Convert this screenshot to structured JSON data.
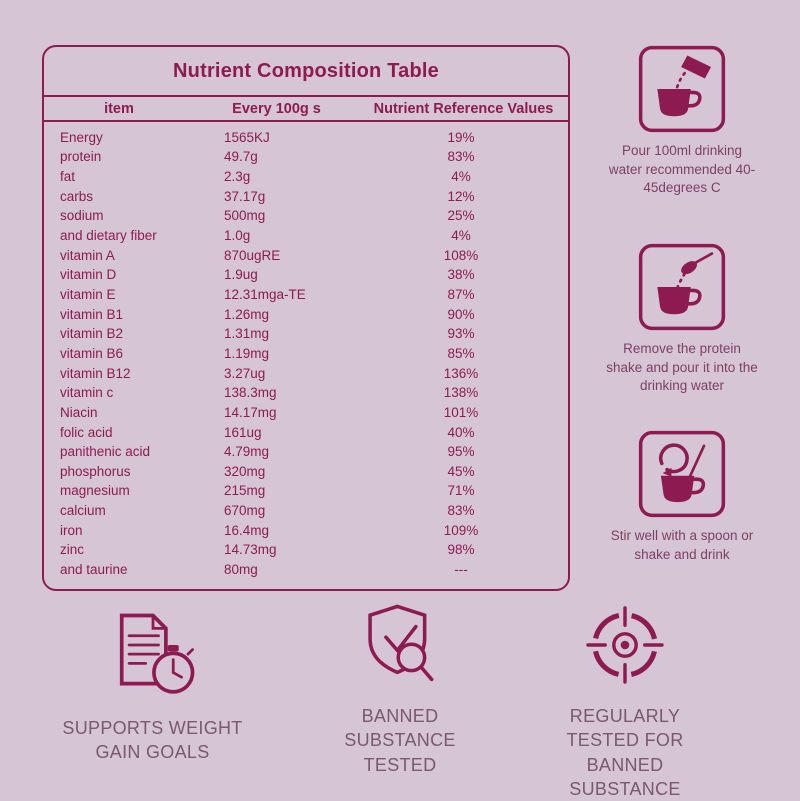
{
  "colors": {
    "background": "#d6c5d4",
    "accent": "#8d1b52",
    "muted_label": "#7a5871",
    "instruction_text": "#7d3f66"
  },
  "table": {
    "title": "Nutrient Composition Table",
    "headers": [
      "item",
      "Every 100g s",
      "Nutrient Reference Values"
    ],
    "rows": [
      [
        "Energy",
        "1565KJ",
        "19%"
      ],
      [
        "protein",
        "49.7g",
        "83%"
      ],
      [
        "fat",
        "2.3g",
        "4%"
      ],
      [
        "carbs",
        "37.17g",
        "12%"
      ],
      [
        "sodium",
        "500mg",
        "25%"
      ],
      [
        "and dietary fiber",
        "1.0g",
        "4%"
      ],
      [
        "vitamin A",
        "870ugRE",
        "108%"
      ],
      [
        "vitamin D",
        "1.9ug",
        "38%"
      ],
      [
        "vitamin E",
        "12.31mga-TE",
        "87%"
      ],
      [
        "vitamin B1",
        "1.26mg",
        "90%"
      ],
      [
        "vitamin B2",
        "1.31mg",
        "93%"
      ],
      [
        "vitamin B6",
        "1.19mg",
        "85%"
      ],
      [
        "vitamin B12",
        "3.27ug",
        "136%"
      ],
      [
        "vitamin c",
        "138.3mg",
        "138%"
      ],
      [
        "Niacin",
        "14.17mg",
        "101%"
      ],
      [
        "folic acid",
        "161ug",
        "40%"
      ],
      [
        "panithenic acid",
        "4.79mg",
        "95%"
      ],
      [
        "phosphorus",
        "320mg",
        "45%"
      ],
      [
        "magnesium",
        "215mg",
        "71%"
      ],
      [
        "calcium",
        "670mg",
        "83%"
      ],
      [
        "iron",
        "16.4mg",
        "109%"
      ],
      [
        "zinc",
        "14.73mg",
        "98%"
      ],
      [
        "and taurine",
        "80mg",
        "---"
      ]
    ]
  },
  "instructions": [
    {
      "icon": "pour-water-cup-icon",
      "text": "Pour 100ml drinking water recommended 40-45degrees C"
    },
    {
      "icon": "spoon-powder-cup-icon",
      "text": "Remove the protein shake and pour it into the drinking water"
    },
    {
      "icon": "stir-cup-icon",
      "text": "Stir well with a spoon or shake and drink"
    }
  ],
  "badges": [
    {
      "icon": "document-stopwatch-icon",
      "label": "SUPPORTS WEIGHT GAIN GOALS"
    },
    {
      "icon": "shield-check-magnifier-icon",
      "label": "BANNED SUBSTANCE TESTED"
    },
    {
      "icon": "target-crosshair-icon",
      "label": "REGULARLY TESTED FOR BANNED SUBSTANCE"
    }
  ]
}
